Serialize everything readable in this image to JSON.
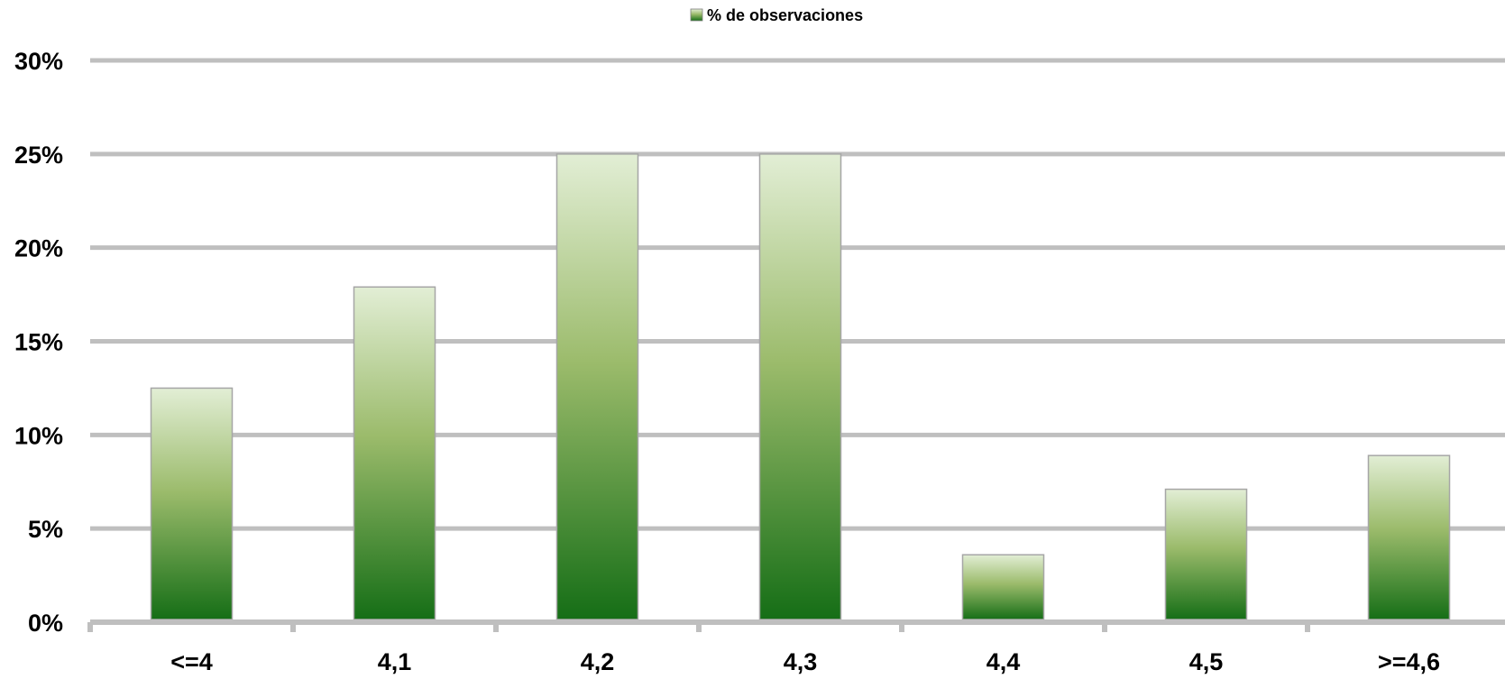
{
  "chart_data": {
    "type": "bar",
    "categories": [
      "<=4",
      "4,1",
      "4,2",
      "4,3",
      "4,4",
      "4,5",
      ">=4,6"
    ],
    "series": [
      {
        "name": "% de observaciones",
        "values": [
          12.5,
          17.9,
          25.0,
          25.0,
          3.6,
          7.1,
          8.9
        ]
      }
    ],
    "y_ticks": [
      "0%",
      "5%",
      "10%",
      "15%",
      "20%",
      "25%",
      "30%"
    ],
    "ylim": [
      0,
      30
    ],
    "grid": true,
    "legend_position": "top-center",
    "colors": {
      "bar_top": "#e2eed5",
      "bar_mid": "#9bbb6b",
      "bar_bottom": "#156e16",
      "grid": "#bfbfbf",
      "bar_border": "#a6a6a6"
    }
  }
}
